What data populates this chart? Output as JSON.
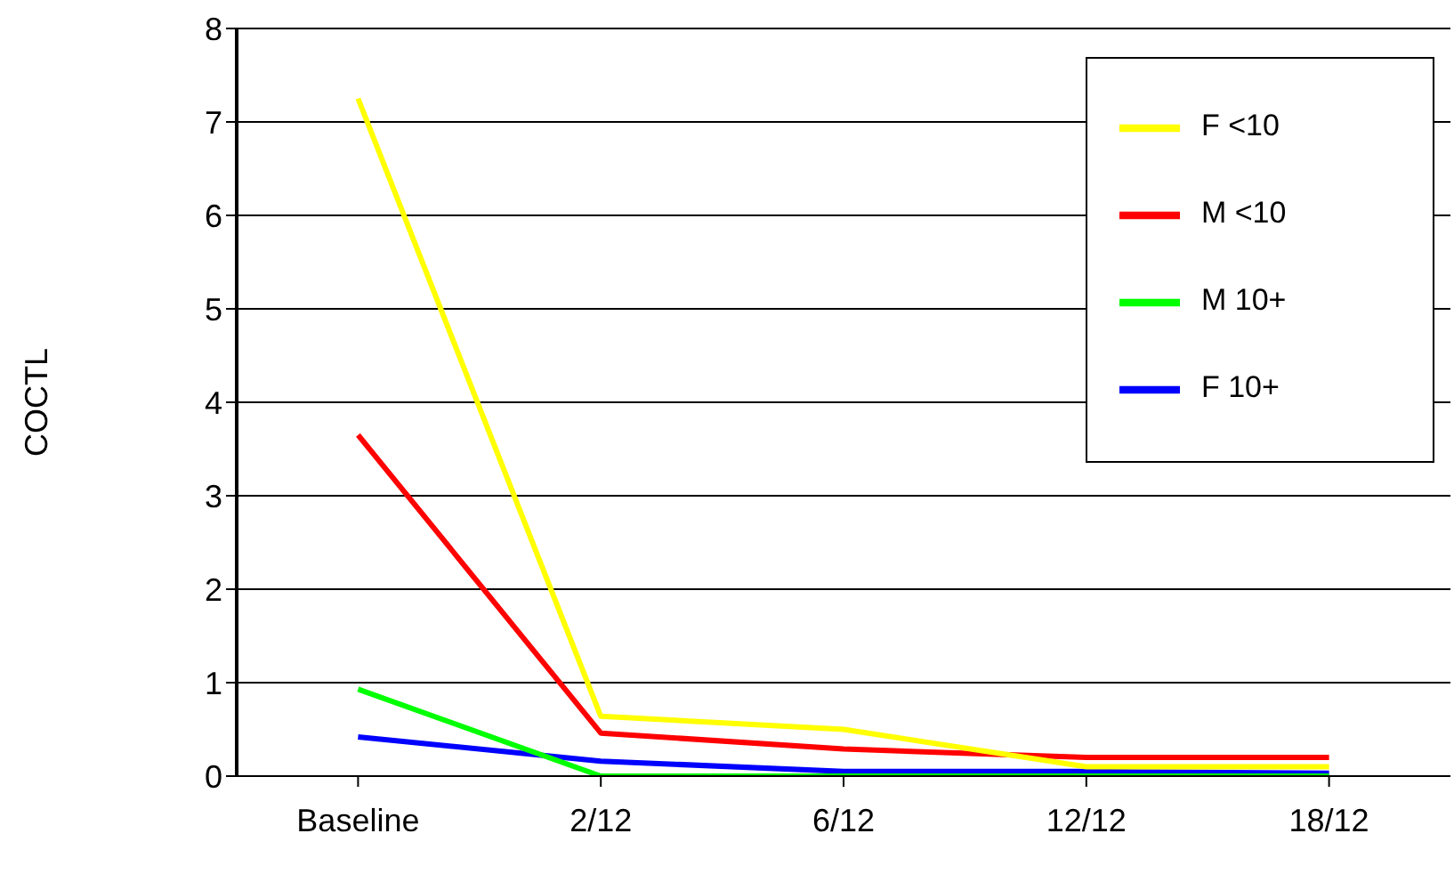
{
  "chart_data": {
    "type": "line",
    "ylabel": "COCTL",
    "categories": [
      "Baseline",
      "2/12",
      "6/12",
      "12/12",
      "18/12"
    ],
    "series": [
      {
        "name": "F <10",
        "color": "#ffff00",
        "values": [
          7.25,
          0.64,
          0.5,
          0.1,
          0.1
        ]
      },
      {
        "name": "M <10",
        "color": "#ff0000",
        "values": [
          3.65,
          0.46,
          0.29,
          0.2,
          0.2
        ]
      },
      {
        "name": "M 10+",
        "color": "#00ff00",
        "values": [
          0.93,
          0,
          0,
          0,
          0
        ]
      },
      {
        "name": "F 10+",
        "color": "#0000ff",
        "values": [
          0.42,
          0.16,
          0.05,
          0.05,
          0.03
        ]
      }
    ],
    "ylim": [
      0,
      8
    ],
    "yticks": [
      0,
      1,
      2,
      3,
      4,
      5,
      6,
      7,
      8
    ],
    "grid": "y",
    "legend": "top right",
    "marker": "none",
    "line_style": "solid"
  }
}
